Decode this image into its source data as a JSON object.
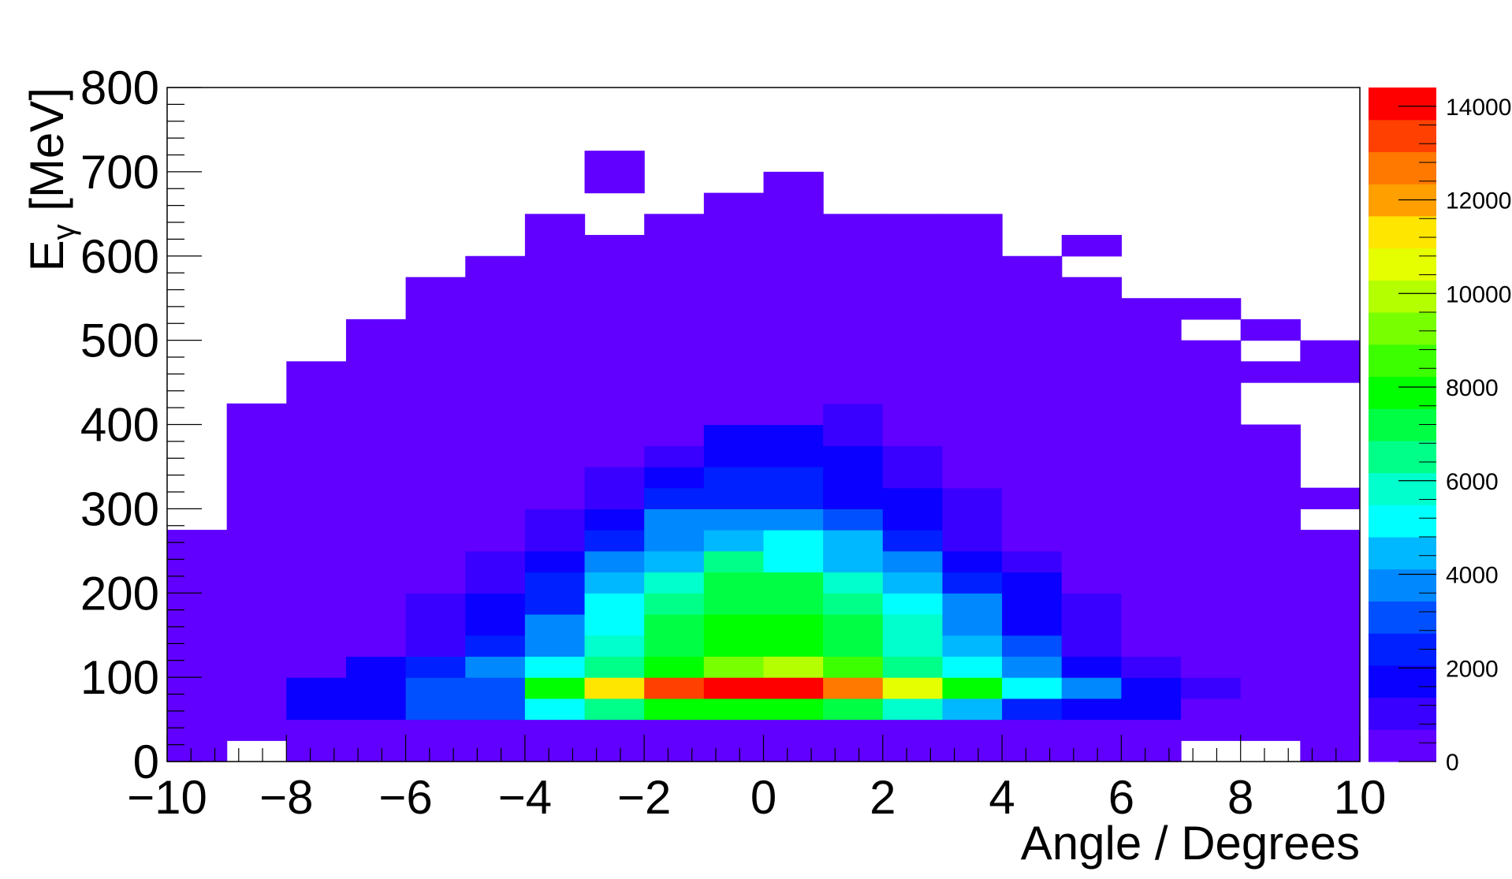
{
  "chart_data": {
    "type": "heatmap",
    "title": "",
    "xlabel": "Angle / Degrees",
    "ylabel": "E",
    "ylabel_subscript": "γ",
    "ylabel_unit": " [MeV]",
    "xlim": [
      -10,
      10
    ],
    "ylim": [
      0,
      800
    ],
    "x_bin_width": 1,
    "y_bin_width": 25,
    "x_ticks": [
      -10,
      -8,
      -6,
      -4,
      -2,
      0,
      2,
      4,
      6,
      8,
      10
    ],
    "x_tick_labels": [
      "−10",
      "−8",
      "−6",
      "−4",
      "−2",
      "0",
      "2",
      "4",
      "6",
      "8",
      "10"
    ],
    "y_ticks": [
      0,
      100,
      200,
      300,
      400,
      500,
      600,
      700,
      800
    ],
    "y_tick_labels": [
      "0",
      "100",
      "200",
      "300",
      "400",
      "500",
      "600",
      "700",
      "800"
    ],
    "z_ticks": [
      0,
      2000,
      4000,
      6000,
      8000,
      10000,
      12000,
      14000
    ],
    "z_tick_labels": [
      "0",
      "2000",
      "4000",
      "6000",
      "8000",
      "10000",
      "12000",
      "14000"
    ],
    "zlim": [
      0,
      14400
    ],
    "colorbar_placement": "right",
    "grid": false,
    "palette": [
      "#6100ff",
      "#3a00ff",
      "#0a00ff",
      "#0020ff",
      "#0050ff",
      "#0088ff",
      "#00b8ff",
      "#00ffff",
      "#00ffcc",
      "#00ff88",
      "#00ff44",
      "#00ff00",
      "#3cff00",
      "#78ff00",
      "#b4ff00",
      "#e6ff00",
      "#ffe600",
      "#ffa000",
      "#ff7800",
      "#ff4000",
      "#ff0000"
    ],
    "columns": [
      {
        "x": -10,
        "segments": [
          [
            0,
            275,
            200
          ]
        ]
      },
      {
        "x": -9,
        "segments": [
          [
            25,
            425,
            200
          ]
        ]
      },
      {
        "x": -8,
        "segments": [
          [
            0,
            50,
            200
          ],
          [
            50,
            100,
            1500
          ],
          [
            100,
            475,
            200
          ]
        ]
      },
      {
        "x": -7,
        "segments": [
          [
            0,
            50,
            200
          ],
          [
            50,
            100,
            2000
          ],
          [
            100,
            125,
            1400
          ],
          [
            125,
            525,
            200
          ]
        ]
      },
      {
        "x": -6,
        "segments": [
          [
            0,
            50,
            200
          ],
          [
            50,
            100,
            3000
          ],
          [
            100,
            125,
            2100
          ],
          [
            125,
            200,
            1200
          ],
          [
            200,
            550,
            200
          ],
          [
            550,
            575,
            150
          ]
        ]
      },
      {
        "x": -5,
        "segments": [
          [
            0,
            50,
            200
          ],
          [
            50,
            100,
            3400
          ],
          [
            100,
            125,
            3600
          ],
          [
            125,
            150,
            2700
          ],
          [
            150,
            200,
            2000
          ],
          [
            200,
            250,
            1200
          ],
          [
            250,
            600,
            200
          ]
        ]
      },
      {
        "x": -4,
        "segments": [
          [
            0,
            50,
            200
          ],
          [
            50,
            75,
            5100
          ],
          [
            75,
            100,
            8200
          ],
          [
            100,
            125,
            5000
          ],
          [
            125,
            175,
            3700
          ],
          [
            175,
            225,
            2700
          ],
          [
            225,
            250,
            2000
          ],
          [
            250,
            300,
            1200
          ],
          [
            300,
            650,
            200
          ]
        ]
      },
      {
        "x": -3,
        "segments": [
          [
            0,
            50,
            200
          ],
          [
            50,
            75,
            6400
          ],
          [
            75,
            100,
            11500
          ],
          [
            100,
            125,
            6400
          ],
          [
            125,
            150,
            5700
          ],
          [
            150,
            200,
            5200
          ],
          [
            200,
            225,
            4200
          ],
          [
            225,
            250,
            3800
          ],
          [
            250,
            275,
            2700
          ],
          [
            275,
            300,
            1900
          ],
          [
            300,
            350,
            1200
          ],
          [
            350,
            625,
            200
          ],
          [
            675,
            725,
            200
          ]
        ]
      },
      {
        "x": -2,
        "segments": [
          [
            0,
            50,
            200
          ],
          [
            50,
            75,
            7800
          ],
          [
            75,
            100,
            13300
          ],
          [
            100,
            125,
            8100
          ],
          [
            125,
            175,
            7100
          ],
          [
            175,
            200,
            6600
          ],
          [
            200,
            225,
            5600
          ],
          [
            225,
            250,
            4300
          ],
          [
            250,
            300,
            3600
          ],
          [
            300,
            325,
            2700
          ],
          [
            325,
            350,
            1800
          ],
          [
            350,
            375,
            1200
          ],
          [
            375,
            650,
            200
          ]
        ]
      },
      {
        "x": -1,
        "segments": [
          [
            0,
            50,
            200
          ],
          [
            50,
            75,
            7800
          ],
          [
            75,
            100,
            13900
          ],
          [
            100,
            125,
            9000
          ],
          [
            125,
            175,
            7700
          ],
          [
            175,
            225,
            7500
          ],
          [
            225,
            250,
            6600
          ],
          [
            250,
            275,
            4400
          ],
          [
            275,
            300,
            3600
          ],
          [
            300,
            350,
            2700
          ],
          [
            350,
            375,
            1900
          ],
          [
            375,
            400,
            1400
          ],
          [
            400,
            675,
            200
          ]
        ]
      },
      {
        "x": 0,
        "segments": [
          [
            0,
            50,
            200
          ],
          [
            50,
            75,
            7700
          ],
          [
            75,
            100,
            14200
          ],
          [
            100,
            125,
            9700
          ],
          [
            125,
            175,
            7800
          ],
          [
            175,
            225,
            7500
          ],
          [
            225,
            275,
            5000
          ],
          [
            275,
            300,
            3600
          ],
          [
            300,
            350,
            2700
          ],
          [
            350,
            375,
            1900
          ],
          [
            375,
            400,
            1400
          ],
          [
            400,
            700,
            200
          ]
        ]
      },
      {
        "x": 1,
        "segments": [
          [
            0,
            50,
            200
          ],
          [
            50,
            75,
            7000
          ],
          [
            75,
            100,
            12700
          ],
          [
            100,
            125,
            8300
          ],
          [
            125,
            175,
            7200
          ],
          [
            175,
            200,
            6500
          ],
          [
            200,
            225,
            5700
          ],
          [
            225,
            275,
            4200
          ],
          [
            275,
            300,
            2900
          ],
          [
            300,
            375,
            1900
          ],
          [
            375,
            425,
            1300
          ],
          [
            425,
            650,
            200
          ]
        ]
      },
      {
        "x": 2,
        "segments": [
          [
            0,
            50,
            200
          ],
          [
            50,
            75,
            5800
          ],
          [
            75,
            100,
            10900
          ],
          [
            100,
            125,
            6600
          ],
          [
            125,
            175,
            5800
          ],
          [
            175,
            200,
            5200
          ],
          [
            200,
            225,
            4200
          ],
          [
            225,
            250,
            3600
          ],
          [
            250,
            275,
            2700
          ],
          [
            275,
            325,
            1900
          ],
          [
            325,
            375,
            1200
          ],
          [
            375,
            650,
            200
          ]
        ]
      },
      {
        "x": 3,
        "segments": [
          [
            0,
            50,
            200
          ],
          [
            50,
            75,
            4200
          ],
          [
            75,
            100,
            7900
          ],
          [
            100,
            125,
            5000
          ],
          [
            125,
            150,
            4200
          ],
          [
            150,
            200,
            3600
          ],
          [
            200,
            225,
            2700
          ],
          [
            225,
            250,
            1900
          ],
          [
            250,
            325,
            1200
          ],
          [
            325,
            650,
            200
          ]
        ]
      },
      {
        "x": 4,
        "segments": [
          [
            0,
            50,
            200
          ],
          [
            50,
            75,
            2700
          ],
          [
            75,
            100,
            5100
          ],
          [
            100,
            125,
            3600
          ],
          [
            125,
            150,
            2800
          ],
          [
            150,
            225,
            1900
          ],
          [
            225,
            250,
            1200
          ],
          [
            250,
            600,
            200
          ]
        ]
      },
      {
        "x": 5,
        "segments": [
          [
            0,
            50,
            200
          ],
          [
            50,
            75,
            1900
          ],
          [
            75,
            100,
            3500
          ],
          [
            100,
            125,
            1900
          ],
          [
            125,
            200,
            1200
          ],
          [
            200,
            575,
            200
          ],
          [
            600,
            625,
            150
          ]
        ]
      },
      {
        "x": 6,
        "segments": [
          [
            0,
            50,
            200
          ],
          [
            50,
            75,
            1500
          ],
          [
            75,
            100,
            2000
          ],
          [
            100,
            125,
            1300
          ],
          [
            125,
            550,
            200
          ]
        ]
      },
      {
        "x": 7,
        "segments": [
          [
            25,
            75,
            200
          ],
          [
            75,
            100,
            1200
          ],
          [
            100,
            500,
            200
          ],
          [
            525,
            550,
            200
          ]
        ]
      },
      {
        "x": 8,
        "segments": [
          [
            25,
            400,
            200
          ],
          [
            450,
            475,
            200
          ],
          [
            500,
            525,
            200
          ]
        ]
      },
      {
        "x": 9,
        "segments": [
          [
            0,
            275,
            200
          ],
          [
            300,
            325,
            200
          ],
          [
            450,
            500,
            200
          ]
        ]
      }
    ]
  }
}
